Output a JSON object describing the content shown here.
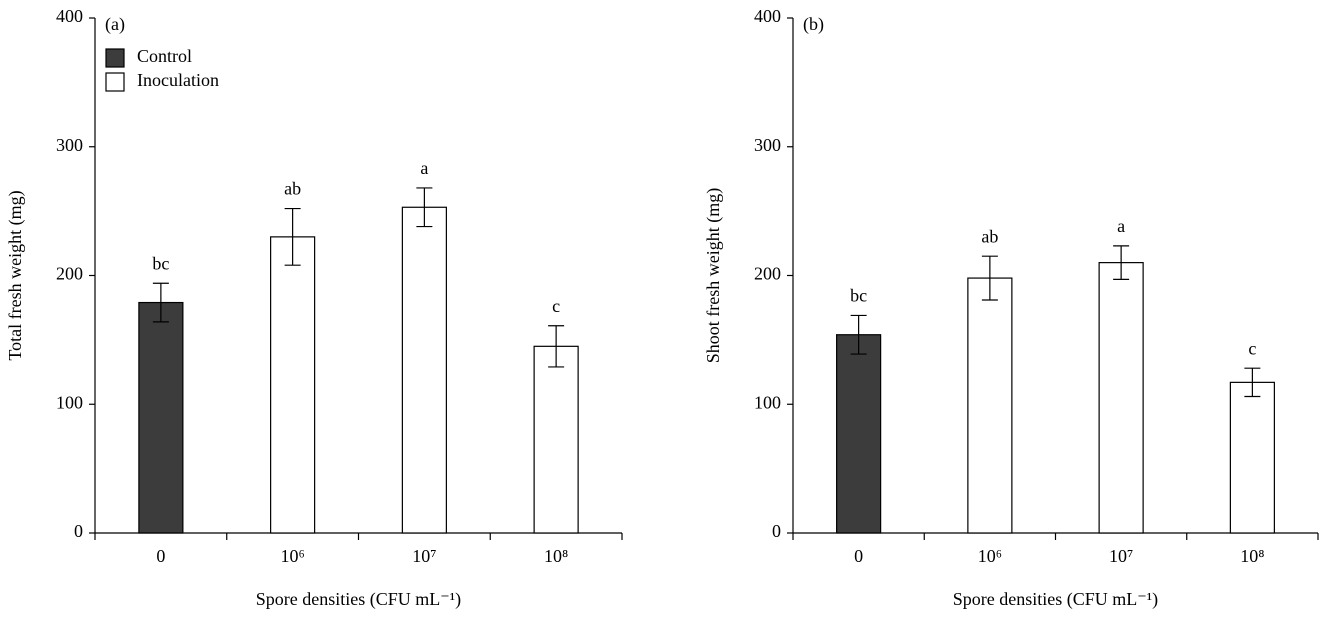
{
  "chart_data": [
    {
      "type": "bar",
      "panel_label": "(a)",
      "ylabel": "Total fresh weight (mg)",
      "xlabel": "Spore densities (CFU mL⁻¹)",
      "categories": [
        "0",
        "10⁶",
        "10⁷",
        "10⁸"
      ],
      "values": [
        179,
        230,
        253,
        145
      ],
      "errors": [
        15,
        22,
        15,
        16
      ],
      "annotations": [
        "bc",
        "ab",
        "a",
        "c"
      ],
      "colors": [
        "#3c3c3c",
        "#ffffff",
        "#ffffff",
        "#ffffff"
      ],
      "legend": [
        {
          "name": "Control",
          "color": "#3c3c3c"
        },
        {
          "name": "Inoculation",
          "color": "#ffffff"
        }
      ],
      "ylim": [
        0,
        400
      ],
      "yticks": [
        0,
        100,
        200,
        300,
        400
      ]
    },
    {
      "type": "bar",
      "panel_label": "(b)",
      "ylabel": "Shoot fresh weight (mg)",
      "xlabel": "Spore densities (CFU mL⁻¹)",
      "categories": [
        "0",
        "10⁶",
        "10⁷",
        "10⁸"
      ],
      "values": [
        154,
        198,
        210,
        117
      ],
      "errors": [
        15,
        17,
        13,
        11
      ],
      "annotations": [
        "bc",
        "ab",
        "a",
        "c"
      ],
      "colors": [
        "#3c3c3c",
        "#ffffff",
        "#ffffff",
        "#ffffff"
      ],
      "ylim": [
        0,
        400
      ],
      "yticks": [
        0,
        100,
        200,
        300,
        400
      ]
    }
  ]
}
